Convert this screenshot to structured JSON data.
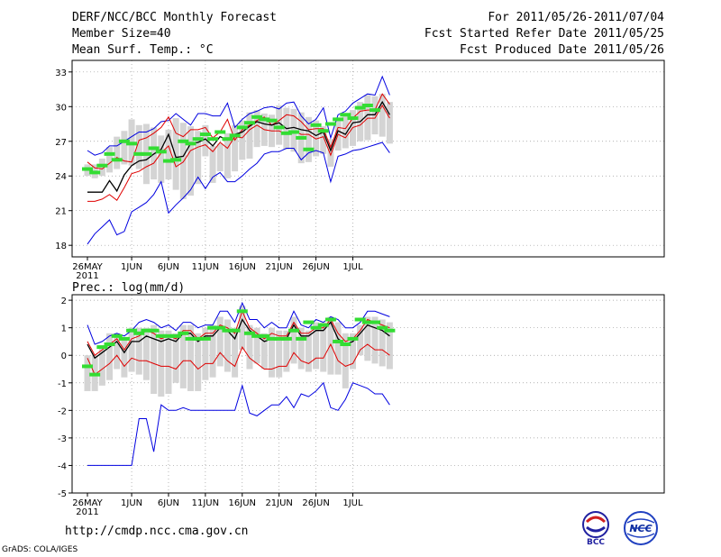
{
  "header": {
    "title": "DERF/NCC/BCC Monthly Forecast",
    "member_size": "Member Size=40",
    "variable": "Mean Surf. Temp.: °C",
    "period": "For 2011/05/26-2011/07/04",
    "refer_date": "Fcst Started Refer Date 2011/05/25",
    "produced_date": "Fcst Produced Date 2011/05/26"
  },
  "footer": {
    "url": "http://cmdp.ncc.cma.gov.cn",
    "credit": "GrADS: COLA/IGES",
    "logo_left": "BCC",
    "logo_right": "NCC"
  },
  "colors": {
    "mean": "#000000",
    "spread": "#e00000",
    "extreme": "#0000e0",
    "box": "#d4d4d4",
    "obs": "#33dd33"
  },
  "chart_data": [
    {
      "type": "line",
      "name": "temperature",
      "title": "Mean Surf. Temp.: °C",
      "ylim": [
        17,
        34
      ],
      "yticks": [
        18,
        21,
        24,
        27,
        30,
        33
      ],
      "x_days": 40,
      "xtick_labels": [
        {
          "day": 0,
          "label": "26MAY"
        },
        {
          "day": 6,
          "label": "1JUN"
        },
        {
          "day": 11,
          "label": "6JUN"
        },
        {
          "day": 16,
          "label": "11JUN"
        },
        {
          "day": 21,
          "label": "16JUN"
        },
        {
          "day": 26,
          "label": "21JUN"
        },
        {
          "day": 31,
          "label": "26JUN"
        },
        {
          "day": 36,
          "label": "1JUL"
        }
      ],
      "year_label": "2011",
      "grid": true,
      "series": [
        {
          "name": "max",
          "role": "extreme",
          "values": [
            26.2,
            25.8,
            26.0,
            26.6,
            26.6,
            27.0,
            27.4,
            27.8,
            27.8,
            28.1,
            28.7,
            28.8,
            29.4,
            28.9,
            28.4,
            29.4,
            29.4,
            29.2,
            29.2,
            30.3,
            28.2,
            28.9,
            29.4,
            29.6,
            29.9,
            30.0,
            29.8,
            30.3,
            30.4,
            29.2,
            28.5,
            28.9,
            29.9,
            27.3,
            29.3,
            29.6,
            30.3,
            30.7,
            31.1,
            31.0,
            32.6,
            31.0
          ]
        },
        {
          "name": "upper",
          "role": "spread",
          "values": [
            25.2,
            24.7,
            24.6,
            25.1,
            25.6,
            25.3,
            25.2,
            27.1,
            27.3,
            27.7,
            28.2,
            29.1,
            27.7,
            27.4,
            28.0,
            28.0,
            28.2,
            27.3,
            27.8,
            28.9,
            27.1,
            28.0,
            28.4,
            28.8,
            29.1,
            28.4,
            28.8,
            29.3,
            29.2,
            28.7,
            28.0,
            28.1,
            28.1,
            26.5,
            28.2,
            28.1,
            29.0,
            29.6,
            29.7,
            29.7,
            31.1,
            30.2
          ]
        },
        {
          "name": "mean",
          "role": "mean",
          "values": [
            22.6,
            22.6,
            22.6,
            23.6,
            22.7,
            24.1,
            24.9,
            25.3,
            25.4,
            25.9,
            26.3,
            27.6,
            25.6,
            25.7,
            26.8,
            26.9,
            27.2,
            26.6,
            27.4,
            27.1,
            27.6,
            27.8,
            28.3,
            28.7,
            28.5,
            28.4,
            28.6,
            28.1,
            28.2,
            28.0,
            27.9,
            27.5,
            27.8,
            26.2,
            27.9,
            27.6,
            28.6,
            28.7,
            29.3,
            29.3,
            30.4,
            29.3
          ]
        },
        {
          "name": "lower",
          "role": "spread",
          "values": [
            21.8,
            21.8,
            22.0,
            22.4,
            21.9,
            23.0,
            24.2,
            24.4,
            24.8,
            25.1,
            26.0,
            26.6,
            24.8,
            25.2,
            26.2,
            26.5,
            26.7,
            26.1,
            26.9,
            26.4,
            27.4,
            27.3,
            28.0,
            28.4,
            28.0,
            27.9,
            27.9,
            27.6,
            27.9,
            27.6,
            27.6,
            27.2,
            27.4,
            25.8,
            27.6,
            27.3,
            28.2,
            28.4,
            29.0,
            29.0,
            30.1,
            29.0
          ]
        },
        {
          "name": "min",
          "role": "extreme",
          "values": [
            18.1,
            19.0,
            19.6,
            20.2,
            18.9,
            19.2,
            20.9,
            21.3,
            21.7,
            22.4,
            23.5,
            20.8,
            21.5,
            22.1,
            22.8,
            23.9,
            22.9,
            23.9,
            24.3,
            23.5,
            23.5,
            24.0,
            24.6,
            25.1,
            25.9,
            26.1,
            26.1,
            26.4,
            26.4,
            25.4,
            26.0,
            26.2,
            26.0,
            23.5,
            25.7,
            25.9,
            26.2,
            26.3,
            26.5,
            26.7,
            26.9,
            26.0
          ]
        }
      ],
      "boxes": {
        "low": [
          24.0,
          23.8,
          24.0,
          24.3,
          24.6,
          25.0,
          24.9,
          24.6,
          23.3,
          23.7,
          23.4,
          23.7,
          22.8,
          22.0,
          22.3,
          23.3,
          25.7,
          23.4,
          24.4,
          23.8,
          24.4,
          25.4,
          25.5,
          26.5,
          26.6,
          26.5,
          26.7,
          26.3,
          26.1,
          25.1,
          25.2,
          25.7,
          25.9,
          24.8,
          26.2,
          26.4,
          26.6,
          27.0,
          27.1,
          27.6,
          27.4,
          26.8
        ],
        "high": [
          25.0,
          25.0,
          25.5,
          26.5,
          27.4,
          27.9,
          28.9,
          28.4,
          28.5,
          28.2,
          27.5,
          28.0,
          29.0,
          28.6,
          28.3,
          27.9,
          28.4,
          26.6,
          26.8,
          27.7,
          28.4,
          28.8,
          29.5,
          29.7,
          29.4,
          29.3,
          30.1,
          29.9,
          29.8,
          29.5,
          29.1,
          28.8,
          28.3,
          27.2,
          28.8,
          29.3,
          29.7,
          30.4,
          31.0,
          30.9,
          31.1,
          30.4
        ]
      },
      "observed": [
        24.6,
        24.3,
        24.9,
        25.9,
        25.4,
        27.0,
        26.8,
        25.9,
        25.9,
        26.4,
        26.1,
        25.3,
        25.4,
        27.0,
        26.8,
        27.2,
        27.6,
        27.2,
        27.8,
        27.2,
        27.5,
        28.2,
        28.6,
        29.1,
        28.9,
        28.8,
        28.2,
        27.7,
        27.8,
        27.3,
        26.3,
        28.4,
        27.9,
        28.5,
        28.9,
        29.3,
        29.0,
        29.9,
        30.1,
        29.7
      ]
    },
    {
      "type": "line",
      "name": "precipitation",
      "title": "Prec.: log(mm/d)",
      "ylim": [
        -5,
        2.2
      ],
      "yticks": [
        -5,
        -4,
        -3,
        -2,
        -1,
        0,
        1,
        2
      ],
      "x_days": 40,
      "xtick_labels": [
        {
          "day": 0,
          "label": "26MAY"
        },
        {
          "day": 6,
          "label": "1JUN"
        },
        {
          "day": 11,
          "label": "6JUN"
        },
        {
          "day": 16,
          "label": "11JUN"
        },
        {
          "day": 21,
          "label": "16JUN"
        },
        {
          "day": 26,
          "label": "21JUN"
        },
        {
          "day": 31,
          "label": "26JUN"
        },
        {
          "day": 36,
          "label": "1JUL"
        }
      ],
      "year_label": "2011",
      "grid": true,
      "series": [
        {
          "name": "max",
          "role": "extreme",
          "values": [
            1.1,
            0.4,
            0.5,
            0.7,
            0.8,
            0.7,
            0.9,
            1.2,
            1.3,
            1.2,
            1.0,
            1.1,
            0.9,
            1.2,
            1.2,
            1.0,
            1.1,
            1.1,
            1.6,
            1.6,
            1.2,
            1.9,
            1.3,
            1.3,
            1.0,
            1.2,
            1.0,
            1.0,
            1.6,
            1.1,
            1.0,
            1.3,
            1.2,
            1.4,
            1.3,
            1.0,
            1.0,
            1.2,
            1.6,
            1.6,
            1.5,
            1.4
          ]
        },
        {
          "name": "upper",
          "role": "spread",
          "values": [
            0.5,
            0.0,
            0.2,
            0.4,
            0.6,
            0.2,
            0.6,
            0.7,
            0.9,
            0.8,
            0.6,
            0.7,
            0.6,
            0.9,
            0.9,
            0.6,
            0.8,
            0.8,
            1.1,
            1.0,
            0.8,
            1.6,
            1.0,
            0.8,
            0.6,
            0.8,
            0.7,
            0.7,
            1.2,
            0.8,
            0.8,
            1.0,
            1.0,
            1.3,
            0.8,
            0.5,
            0.6,
            0.9,
            1.3,
            1.2,
            1.1,
            1.0
          ]
        },
        {
          "name": "mean",
          "role": "mean",
          "values": [
            0.4,
            -0.1,
            0.1,
            0.3,
            0.5,
            0.1,
            0.5,
            0.5,
            0.7,
            0.6,
            0.5,
            0.6,
            0.5,
            0.8,
            0.8,
            0.5,
            0.7,
            0.7,
            1.0,
            0.9,
            0.6,
            1.3,
            0.9,
            0.7,
            0.5,
            0.6,
            0.6,
            0.6,
            1.1,
            0.7,
            0.7,
            0.9,
            0.9,
            1.2,
            0.6,
            0.4,
            0.5,
            0.8,
            1.1,
            1.0,
            0.9,
            0.7
          ]
        },
        {
          "name": "lower",
          "role": "spread",
          "values": [
            -0.1,
            -0.7,
            -0.5,
            -0.3,
            0.0,
            -0.4,
            -0.1,
            -0.2,
            -0.2,
            -0.3,
            -0.4,
            -0.4,
            -0.5,
            -0.2,
            -0.2,
            -0.5,
            -0.3,
            -0.3,
            0.1,
            -0.2,
            -0.4,
            0.3,
            -0.1,
            -0.3,
            -0.5,
            -0.5,
            -0.4,
            -0.4,
            0.1,
            -0.2,
            -0.3,
            -0.1,
            -0.1,
            0.4,
            -0.2,
            -0.4,
            -0.3,
            0.2,
            0.4,
            0.2,
            0.2,
            0.0
          ]
        },
        {
          "name": "min",
          "role": "extreme",
          "values": [
            -4.0,
            -4.0,
            -4.0,
            -4.0,
            -4.0,
            -4.0,
            -4.0,
            -2.3,
            -2.3,
            -3.5,
            -1.8,
            -2.0,
            -2.0,
            -1.9,
            -2.0,
            -2.0,
            -2.0,
            -2.0,
            -2.0,
            -2.0,
            -2.0,
            -1.1,
            -2.1,
            -2.2,
            -2.0,
            -1.8,
            -1.8,
            -1.5,
            -1.9,
            -1.4,
            -1.5,
            -1.3,
            -1.0,
            -1.9,
            -2.0,
            -1.6,
            -1.0,
            -1.1,
            -1.2,
            -1.4,
            -1.4,
            -1.8
          ]
        }
      ],
      "boxes": {
        "low": [
          -1.3,
          -1.3,
          -1.1,
          -0.9,
          -0.5,
          -0.8,
          -0.6,
          -0.7,
          -0.9,
          -1.4,
          -1.5,
          -1.4,
          -1.0,
          -1.2,
          -1.3,
          -1.3,
          -0.9,
          -0.8,
          -0.4,
          -0.6,
          -0.8,
          0.2,
          -0.5,
          -0.3,
          -0.5,
          -0.8,
          -0.8,
          -0.6,
          -0.3,
          -0.5,
          -0.6,
          -0.5,
          -0.6,
          -0.7,
          -0.7,
          -1.2,
          -0.5,
          0.0,
          -0.2,
          -0.3,
          -0.4,
          -0.5
        ],
        "high": [
          0.0,
          0.0,
          0.3,
          0.8,
          0.8,
          0.6,
          1.0,
          1.0,
          1.0,
          1.1,
          0.9,
          0.9,
          0.8,
          1.1,
          1.1,
          0.8,
          1.0,
          1.1,
          1.4,
          1.3,
          1.0,
          1.8,
          1.1,
          1.0,
          0.8,
          1.0,
          0.9,
          0.9,
          1.4,
          1.0,
          0.9,
          1.2,
          1.2,
          1.4,
          1.2,
          0.8,
          0.8,
          1.1,
          1.4,
          1.4,
          1.3,
          1.2
        ]
      },
      "observed": [
        -0.4,
        -0.7,
        0.3,
        0.4,
        0.7,
        0.6,
        0.9,
        0.8,
        0.9,
        0.9,
        0.7,
        0.7,
        0.7,
        0.8,
        0.6,
        0.6,
        0.6,
        1.0,
        1.0,
        0.9,
        0.9,
        1.6,
        0.8,
        0.7,
        0.7,
        0.6,
        0.6,
        0.6,
        0.9,
        0.6,
        1.2,
        1.0,
        1.1,
        1.3,
        0.5,
        0.4,
        0.6,
        1.3,
        1.2,
        1.2,
        1.0,
        0.9
      ]
    }
  ]
}
